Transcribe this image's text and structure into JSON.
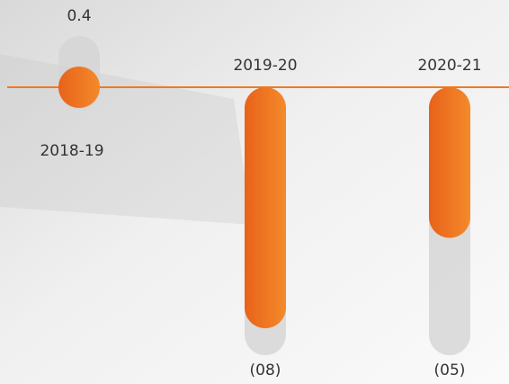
{
  "chart_data": {
    "type": "bar",
    "categories": [
      "2018-19",
      "2019-20",
      "2020-21"
    ],
    "values": [
      0.4,
      -8,
      -5
    ],
    "value_labels": [
      "0.4",
      "(08)",
      "(05)"
    ],
    "color": "#f07a22"
  }
}
